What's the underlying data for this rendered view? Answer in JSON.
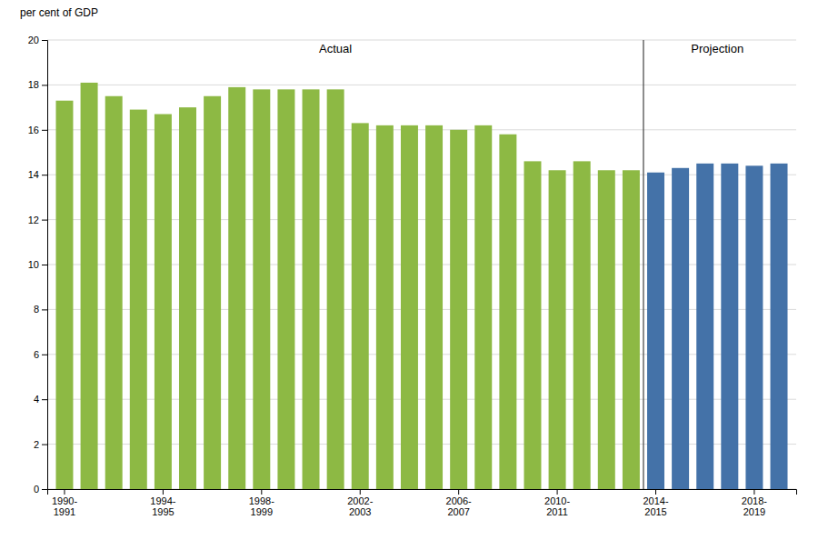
{
  "chart_data": {
    "type": "bar",
    "y_label": "per cent of GDP",
    "categories": [
      "1990-\n1991",
      null,
      null,
      null,
      "1994-\n1995",
      null,
      null,
      null,
      "1998-\n1999",
      null,
      null,
      null,
      "2002-\n2003",
      null,
      null,
      null,
      "2006-\n2007",
      null,
      null,
      null,
      "2010-\n2011",
      null,
      null,
      null,
      "2014-\n2015",
      null,
      null,
      null,
      "2018-\n2019",
      null
    ],
    "values": [
      17.3,
      18.1,
      17.5,
      16.9,
      16.7,
      17.0,
      17.5,
      17.9,
      17.8,
      17.8,
      17.8,
      17.8,
      16.3,
      16.2,
      16.2,
      16.2,
      16.0,
      16.2,
      15.8,
      14.6,
      14.2,
      14.6,
      14.2,
      14.2,
      14.1,
      14.3,
      14.5,
      14.5,
      14.4,
      14.5
    ],
    "colors": [
      "#8DB944",
      "#8DB944",
      "#8DB944",
      "#8DB944",
      "#8DB944",
      "#8DB944",
      "#8DB944",
      "#8DB944",
      "#8DB944",
      "#8DB944",
      "#8DB944",
      "#8DB944",
      "#8DB944",
      "#8DB944",
      "#8DB944",
      "#8DB944",
      "#8DB944",
      "#8DB944",
      "#8DB944",
      "#8DB944",
      "#8DB944",
      "#8DB944",
      "#8DB944",
      "#8DB944",
      "#4472A8",
      "#4472A8",
      "#4472A8",
      "#4472A8",
      "#4472A8",
      "#4472A8"
    ],
    "ylim": [
      0,
      20
    ],
    "yticks": [
      0,
      2,
      4,
      6,
      8,
      10,
      12,
      14,
      16,
      18,
      20
    ],
    "grid": true,
    "annotations": [
      {
        "text": "Actual",
        "x": 11,
        "y": 19.3
      },
      {
        "text": "Projection",
        "x": 26.5,
        "y": 19.3
      }
    ],
    "reference_lines": [
      {
        "x": 23.5,
        "color": "#404040"
      }
    ]
  }
}
